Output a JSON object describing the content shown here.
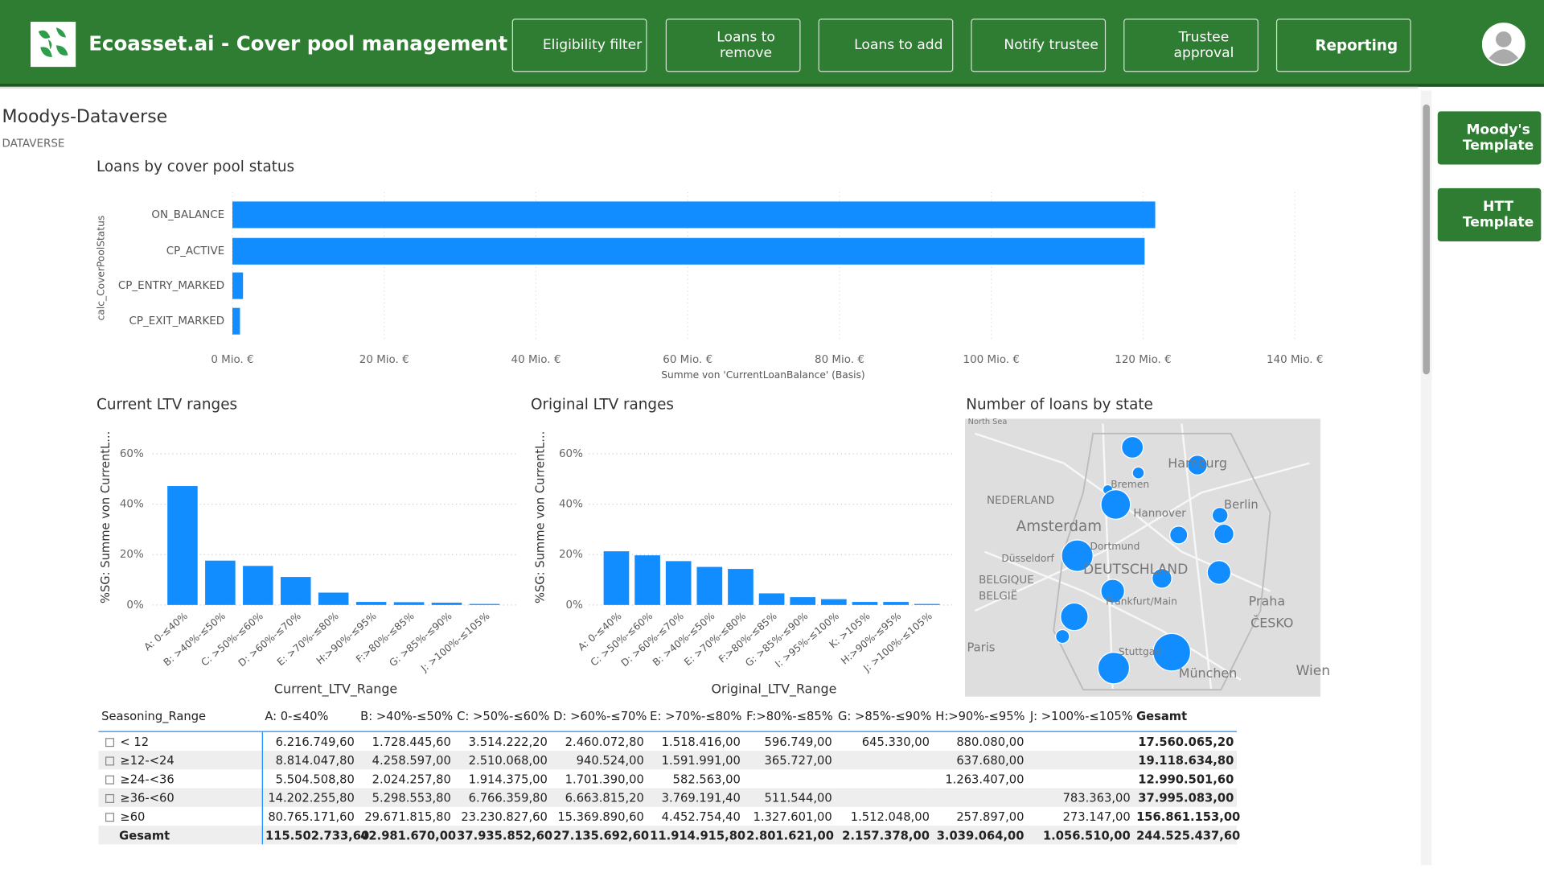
{
  "header": {
    "title": "Ecoasset.ai - Cover pool management",
    "buttons": [
      "Eligibility filter",
      "Loans to remove",
      "Loans to add",
      "Notify trustee",
      "Trustee approval",
      "Reporting"
    ]
  },
  "sidebar": {
    "buttons": [
      "Moody's Template",
      "HTT Template"
    ]
  },
  "report": {
    "title": "Moodys-Dataverse",
    "subtitle": "DATAVERSE"
  },
  "chart_data": [
    {
      "type": "bar",
      "orientation": "horizontal",
      "title": "Loans by cover pool status",
      "x_label": "Summe von 'CurrentLoanBalance' (Basis)",
      "y_label": "calc_CoverPoolStatus",
      "categories": [
        "ON_BALANCE",
        "CP_ACTIVE",
        "CP_ENTRY_MARKED",
        "CP_EXIT_MARKED"
      ],
      "values": [
        121.6,
        120.2,
        1.4,
        1.0
      ],
      "color": "#118dff",
      "xlim": [
        0,
        140
      ],
      "xticks": [
        {
          "value": 0,
          "label": "0 Mio. €"
        },
        {
          "value": 20,
          "label": "20 Mio. €"
        },
        {
          "value": 40,
          "label": "40 Mio. €"
        },
        {
          "value": 60,
          "label": "60 Mio. €"
        },
        {
          "value": 80,
          "label": "80 Mio. €"
        },
        {
          "value": 100,
          "label": "100 Mio. €"
        },
        {
          "value": 120,
          "label": "120 Mio. €"
        },
        {
          "value": 140,
          "label": "140 Mio. €"
        }
      ],
      "grid": true
    },
    {
      "type": "bar",
      "title": "Current LTV ranges",
      "x_label": "Current_LTV_Range",
      "y_label": "%SG: Summe von CurrentL...",
      "categories": [
        "A: 0-≤40%",
        "B: >40%-≤50%",
        "C: >50%-≤60%",
        "D: >60%-≤70%",
        "E: >70%-≤80%",
        "H:>90%-≤95%",
        "F:>80%-≤85%",
        "G: >85%-≤90%",
        "J: >100%-≤105%"
      ],
      "values": [
        47.2,
        17.6,
        15.5,
        11.1,
        4.9,
        1.2,
        1.1,
        0.9,
        0.4
      ],
      "color": "#118dff",
      "ylim": [
        0,
        70
      ],
      "yticks": [
        {
          "value": 0,
          "label": "0%"
        },
        {
          "value": 20,
          "label": "20%"
        },
        {
          "value": 40,
          "label": "40%"
        },
        {
          "value": 60,
          "label": "60%"
        }
      ],
      "grid": true
    },
    {
      "type": "bar",
      "title": "Original LTV ranges",
      "x_label": "Original_LTV_Range",
      "y_label": "%SG: Summe von CurrentL...",
      "categories": [
        "A: 0-≤40%",
        "C: >50%-≤60%",
        "D: >60%-≤70%",
        "B: >40%-≤50%",
        "E: >70%-≤80%",
        "F:>80%-≤85%",
        "G: >85%-≤90%",
        "I: >95%-≤100%",
        "K: >105%",
        "H:>90%-≤95%",
        "J: >100%-≤105%"
      ],
      "values": [
        21.3,
        19.7,
        17.4,
        15.1,
        14.3,
        4.6,
        3.1,
        2.3,
        1.2,
        1.2,
        0.4
      ],
      "color": "#118dff",
      "ylim": [
        0,
        70
      ],
      "yticks": [
        {
          "value": 0,
          "label": "0%"
        },
        {
          "value": 20,
          "label": "20%"
        },
        {
          "value": 40,
          "label": "40%"
        },
        {
          "value": 60,
          "label": "60%"
        }
      ],
      "grid": true
    }
  ],
  "map": {
    "title": "Number of loans by state",
    "labels": [
      "North Sea",
      "Hamburg",
      "Bremen",
      "Hannover",
      "Berlin",
      "NEDERLAND",
      "Amsterdam",
      "Dortmund",
      "Düsseldorf",
      "DEUTSCHLAND",
      "BELGIQUE",
      "BELGIË",
      "Frankfurt/Main",
      "Praha",
      "ČESKO",
      "Paris",
      "Stuttgart",
      "München",
      "Wien"
    ]
  },
  "table": {
    "header": [
      "Seasoning_Range",
      "A: 0-≤40%",
      "B: >40%-≤50%",
      "C: >50%-≤60%",
      "D: >60%-≤70%",
      "E: >70%-≤80%",
      "F:>80%-≤85%",
      "G: >85%-≤90%",
      "H:>90%-≤95%",
      "J: >100%-≤105%",
      "Gesamt"
    ],
    "rows": [
      [
        "< 12",
        "6.216.749,60",
        "1.728.445,60",
        "3.514.222,20",
        "2.460.072,80",
        "1.518.416,00",
        "596.749,00",
        "645.330,00",
        "880.080,00",
        null,
        "17.560.065,20"
      ],
      [
        "≥12-<24",
        "8.814.047,80",
        "4.258.597,00",
        "2.510.068,00",
        "940.524,00",
        "1.591.991,00",
        "365.727,00",
        null,
        "637.680,00",
        null,
        "19.118.634,80"
      ],
      [
        "≥24-<36",
        "5.504.508,80",
        "2.024.257,80",
        "1.914.375,00",
        "1.701.390,00",
        "582.563,00",
        null,
        null,
        "1.263.407,00",
        null,
        "12.990.501,60"
      ],
      [
        "≥36-<60",
        "14.202.255,80",
        "5.298.553,80",
        "6.766.359,80",
        "6.663.815,20",
        "3.769.191,40",
        "511.544,00",
        null,
        null,
        "783.363,00",
        "37.995.083,00"
      ],
      [
        "≥60",
        "80.765.171,60",
        "29.671.815,80",
        "23.230.827,60",
        "15.369.890,60",
        "4.452.754,40",
        "1.327.601,00",
        "1.512.048,00",
        "257.897,00",
        "273.147,00",
        "156.861.153,00"
      ],
      [
        "Gesamt",
        "115.502.733,60",
        "42.981.670,00",
        "37.935.852,60",
        "27.135.692,60",
        "11.914.915,80",
        "2.801.621,00",
        "2.157.378,00",
        "3.039.064,00",
        "1.056.510,00",
        "244.525.437,60"
      ]
    ]
  }
}
